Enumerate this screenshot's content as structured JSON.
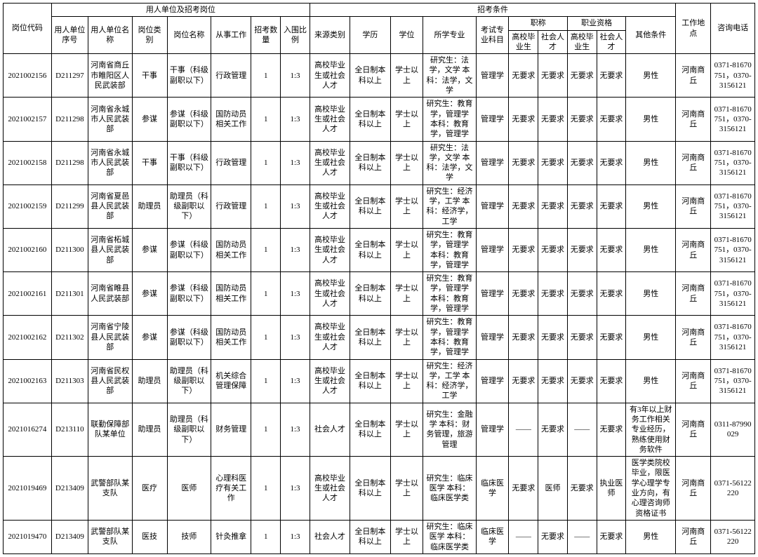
{
  "header": {
    "group_unit": "用人单位及招考岗位",
    "group_cond": "招考条件",
    "code": "岗位代码",
    "seq": "用人单位序号",
    "unit_name": "用人单位名称",
    "post_type": "岗位类别",
    "post_name": "岗位名称",
    "work": "从事工作",
    "num": "招考数量",
    "ratio": "入围比例",
    "source": "来源类别",
    "edu": "学历",
    "degree": "学位",
    "major": "所学专业",
    "exam": "考试专业科目",
    "zc_group": "职称",
    "zy_group": "职业资格",
    "gx_bys": "高校毕业生",
    "sh_rc": "社会人才",
    "other": "其他条件",
    "loc": "工作地点",
    "tel": "咨询电话"
  },
  "rows": [
    {
      "code": "2021002156",
      "seq": "D211297",
      "unit": "河南省商丘市睢阳区人民武装部",
      "ptype": "干事",
      "pname": "干事（科级副职以下）",
      "work": "行政管理",
      "num": "1",
      "ratio": "1:3",
      "src": "高校毕业生或社会人才",
      "edu": "全日制本科以上",
      "deg": "学士以上",
      "major": "研究生：法学，文学\n本科：法学，文学",
      "exam": "管理学",
      "zc1": "无要求",
      "zc2": "无要求",
      "zy1": "无要求",
      "zy2": "无要求",
      "other": "男性",
      "loc": "河南商丘",
      "tel": "0371-81670751，0370-3156121"
    },
    {
      "code": "2021002157",
      "seq": "D211298",
      "unit": "河南省永城市人民武装部",
      "ptype": "参谋",
      "pname": "参谋（科级副职以下）",
      "work": "国防动员相关工作",
      "num": "1",
      "ratio": "1:3",
      "src": "高校毕业生或社会人才",
      "edu": "全日制本科以上",
      "deg": "学士以上",
      "major": "研究生：教育学，管理学\n本科：教育学，管理学",
      "exam": "管理学",
      "zc1": "无要求",
      "zc2": "无要求",
      "zy1": "无要求",
      "zy2": "无要求",
      "other": "男性",
      "loc": "河南商丘",
      "tel": "0371-81670751，0370-3156121"
    },
    {
      "code": "2021002158",
      "seq": "D211298",
      "unit": "河南省永城市人民武装部",
      "ptype": "干事",
      "pname": "干事（科级副职以下）",
      "work": "行政管理",
      "num": "1",
      "ratio": "1:3",
      "src": "高校毕业生或社会人才",
      "edu": "全日制本科以上",
      "deg": "学士以上",
      "major": "研究生：法学，文学\n本科：法学，文学",
      "exam": "管理学",
      "zc1": "无要求",
      "zc2": "无要求",
      "zy1": "无要求",
      "zy2": "无要求",
      "other": "男性",
      "loc": "河南商丘",
      "tel": "0371-81670751，0370-3156121"
    },
    {
      "code": "2021002159",
      "seq": "D211299",
      "unit": "河南省夏邑县人民武装部",
      "ptype": "助理员",
      "pname": "助理员（科级副职以下）",
      "work": "行政管理",
      "num": "1",
      "ratio": "1:3",
      "src": "高校毕业生或社会人才",
      "edu": "全日制本科以上",
      "deg": "学士以上",
      "major": "研究生：经济学，工学\n本科：经济学，工学",
      "exam": "管理学",
      "zc1": "无要求",
      "zc2": "无要求",
      "zy1": "无要求",
      "zy2": "无要求",
      "other": "男性",
      "loc": "河南商丘",
      "tel": "0371-81670751，0370-3156121"
    },
    {
      "code": "2021002160",
      "seq": "D211300",
      "unit": "河南省柘城县人民武装部",
      "ptype": "参谋",
      "pname": "参谋（科级副职以下）",
      "work": "国防动员相关工作",
      "num": "1",
      "ratio": "1:3",
      "src": "高校毕业生或社会人才",
      "edu": "全日制本科以上",
      "deg": "学士以上",
      "major": "研究生：教育学，管理学\n本科：教育学，管理学",
      "exam": "管理学",
      "zc1": "无要求",
      "zc2": "无要求",
      "zy1": "无要求",
      "zy2": "无要求",
      "other": "男性",
      "loc": "河南商丘",
      "tel": "0371-81670751，0370-3156121"
    },
    {
      "code": "2021002161",
      "seq": "D211301",
      "unit": "河南省睢县人民武装部",
      "ptype": "参谋",
      "pname": "参谋（科级副职以下）",
      "work": "国防动员相关工作",
      "num": "1",
      "ratio": "1:3",
      "src": "高校毕业生或社会人才",
      "edu": "全日制本科以上",
      "deg": "学士以上",
      "major": "研究生：教育学，管理学\n本科：教育学，管理学",
      "exam": "管理学",
      "zc1": "无要求",
      "zc2": "无要求",
      "zy1": "无要求",
      "zy2": "无要求",
      "other": "男性",
      "loc": "河南商丘",
      "tel": "0371-81670751，0370-3156121"
    },
    {
      "code": "2021002162",
      "seq": "D211302",
      "unit": "河南省宁陵县人民武装部",
      "ptype": "参谋",
      "pname": "参谋（科级副职以下）",
      "work": "国防动员相关工作",
      "num": "1",
      "ratio": "1:3",
      "src": "高校毕业生或社会人才",
      "edu": "全日制本科以上",
      "deg": "学士以上",
      "major": "研究生：教育学，管理学\n本科：教育学，管理学",
      "exam": "管理学",
      "zc1": "无要求",
      "zc2": "无要求",
      "zy1": "无要求",
      "zy2": "无要求",
      "other": "男性",
      "loc": "河南商丘",
      "tel": "0371-81670751，0370-3156121"
    },
    {
      "code": "2021002163",
      "seq": "D211303",
      "unit": "河南省民权县人民武装部",
      "ptype": "助理员",
      "pname": "助理员（科级副职以下）",
      "work": "机关综合管理保障",
      "num": "1",
      "ratio": "1:3",
      "src": "高校毕业生或社会人才",
      "edu": "全日制本科以上",
      "deg": "学士以上",
      "major": "研究生：经济学，工学\n本科：经济学，工学",
      "exam": "管理学",
      "zc1": "无要求",
      "zc2": "无要求",
      "zy1": "无要求",
      "zy2": "无要求",
      "other": "男性",
      "loc": "河南商丘",
      "tel": "0371-81670751，0370-3156121"
    },
    {
      "code": "2021016274",
      "seq": "D213110",
      "unit": "联勤保障部队某单位",
      "ptype": "助理员",
      "pname": "助理员（科级副职以下）",
      "work": "财务管理",
      "num": "1",
      "ratio": "1:3",
      "src": "社会人才",
      "edu": "全日制本科以上",
      "deg": "学士以上",
      "major": "研究生：金融学\n本科：财务管理，旅游管理",
      "exam": "管理学",
      "zc1": "——",
      "zc2": "无要求",
      "zy1": "——",
      "zy2": "无要求",
      "other": "有3年以上财务工作相关专业经历，熟练使用财务软件",
      "loc": "河南商丘",
      "tel": "0311-87990029"
    },
    {
      "code": "2021019469",
      "seq": "D213409",
      "unit": "武警部队某支队",
      "ptype": "医疗",
      "pname": "医师",
      "work": "心理科医疗有关工作",
      "num": "1",
      "ratio": "1:3",
      "src": "高校毕业生或社会人才",
      "edu": "全日制本科以上",
      "deg": "学士以上",
      "major": "研究生：临床医学\n本科：临床医学类",
      "exam": "临床医学",
      "zc1": "无要求",
      "zc2": "医师",
      "zy1": "无要求",
      "zy2": "执业医师",
      "other": "医学类院校毕业，限医学心理学专业方向，有心理咨询师资格证书",
      "loc": "河南商丘",
      "tel": "0371-56122220"
    },
    {
      "code": "2021019470",
      "seq": "D213409",
      "unit": "武警部队某支队",
      "ptype": "医技",
      "pname": "技师",
      "work": "针灸推拿",
      "num": "1",
      "ratio": "1:3",
      "src": "社会人才",
      "edu": "全日制本科以上",
      "deg": "学士以上",
      "major": "研究生：临床医学\n本科：临床医学类",
      "exam": "临床医学",
      "zc1": "——",
      "zc2": "无要求",
      "zy1": "——",
      "zy2": "无要求",
      "other": "男性",
      "loc": "河南商丘",
      "tel": "0371-56122220"
    }
  ]
}
